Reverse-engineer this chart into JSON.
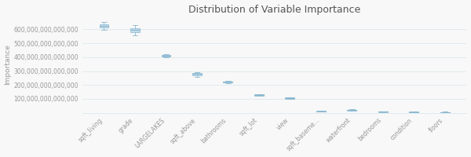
{
  "title": "Distribution of Variable Importance",
  "ylabel": "Importance",
  "features": [
    "sqft_living",
    "grade",
    "LARGELAKES",
    "sqft_above",
    "bathrooms",
    "sqft_lot",
    "view",
    "sqft_baseme...",
    "waterfront",
    "bedrooms",
    "condition",
    "floors"
  ],
  "box_data": [
    {
      "median": 625000000000000.0,
      "q1": 612000000000000.0,
      "q3": 638000000000000.0,
      "whislo": 598000000000000.0,
      "whishi": 652000000000000.0
    },
    {
      "median": 595000000000000.0,
      "q1": 578000000000000.0,
      "q3": 610000000000000.0,
      "whislo": 560000000000000.0,
      "whishi": 628000000000000.0
    },
    {
      "median": 412000000000000.0,
      "q1": 406000000000000.0,
      "q3": 418000000000000.0,
      "whislo": 400000000000000.0,
      "whishi": 424000000000000.0
    },
    {
      "median": 278000000000000.0,
      "q1": 270000000000000.0,
      "q3": 285000000000000.0,
      "whislo": 260000000000000.0,
      "whishi": 292000000000000.0
    },
    {
      "median": 222000000000000.0,
      "q1": 218000000000000.0,
      "q3": 227000000000000.0,
      "whislo": 213000000000000.0,
      "whishi": 232000000000000.0
    },
    {
      "median": 128000000000000.0,
      "q1": 124000000000000.0,
      "q3": 132000000000000.0,
      "whislo": 120000000000000.0,
      "whishi": 136000000000000.0
    },
    {
      "median": 106000000000000.0,
      "q1": 102000000000000.0,
      "q3": 110000000000000.0,
      "whislo": 98000000000000.0,
      "whishi": 114000000000000.0
    },
    {
      "median": 12000000000000.0,
      "q1": 10000000000000.0,
      "q3": 14000000000000.0,
      "whislo": 8000000000000.0,
      "whishi": 16000000000000.0
    },
    {
      "median": 20000000000000.0,
      "q1": 17000000000000.0,
      "q3": 23000000000000.0,
      "whislo": 14000000000000.0,
      "whishi": 26000000000000.0
    },
    {
      "median": 8000000000000.0,
      "q1": 6000000000000.0,
      "q3": 10000000000000.0,
      "whislo": 4000000000000.0,
      "whishi": 12000000000000.0
    },
    {
      "median": 5000000000000.0,
      "q1": 3000000000000.0,
      "q3": 7000000000000.0,
      "whislo": 1000000000000.0,
      "whishi": 9000000000000.0
    },
    {
      "median": 4000000000000.0,
      "q1": 2000000000000.0,
      "q3": 6000000000000.0,
      "whislo": 500000000000.0,
      "whishi": 8000000000000.0
    }
  ],
  "box_color": "#c5dcea",
  "median_color": "#89b8d0",
  "whisker_color": "#89b8d0",
  "background_color": "#f8f8f8",
  "grid_color": "#dde8ef",
  "title_fontsize": 9,
  "label_fontsize": 6.5,
  "tick_fontsize": 5.5,
  "ylim_min": 0,
  "ylim_max": 700000000000000.0,
  "yticks": [
    100000000000000,
    200000000000000,
    300000000000000,
    400000000000000,
    500000000000000,
    600000000000000
  ]
}
